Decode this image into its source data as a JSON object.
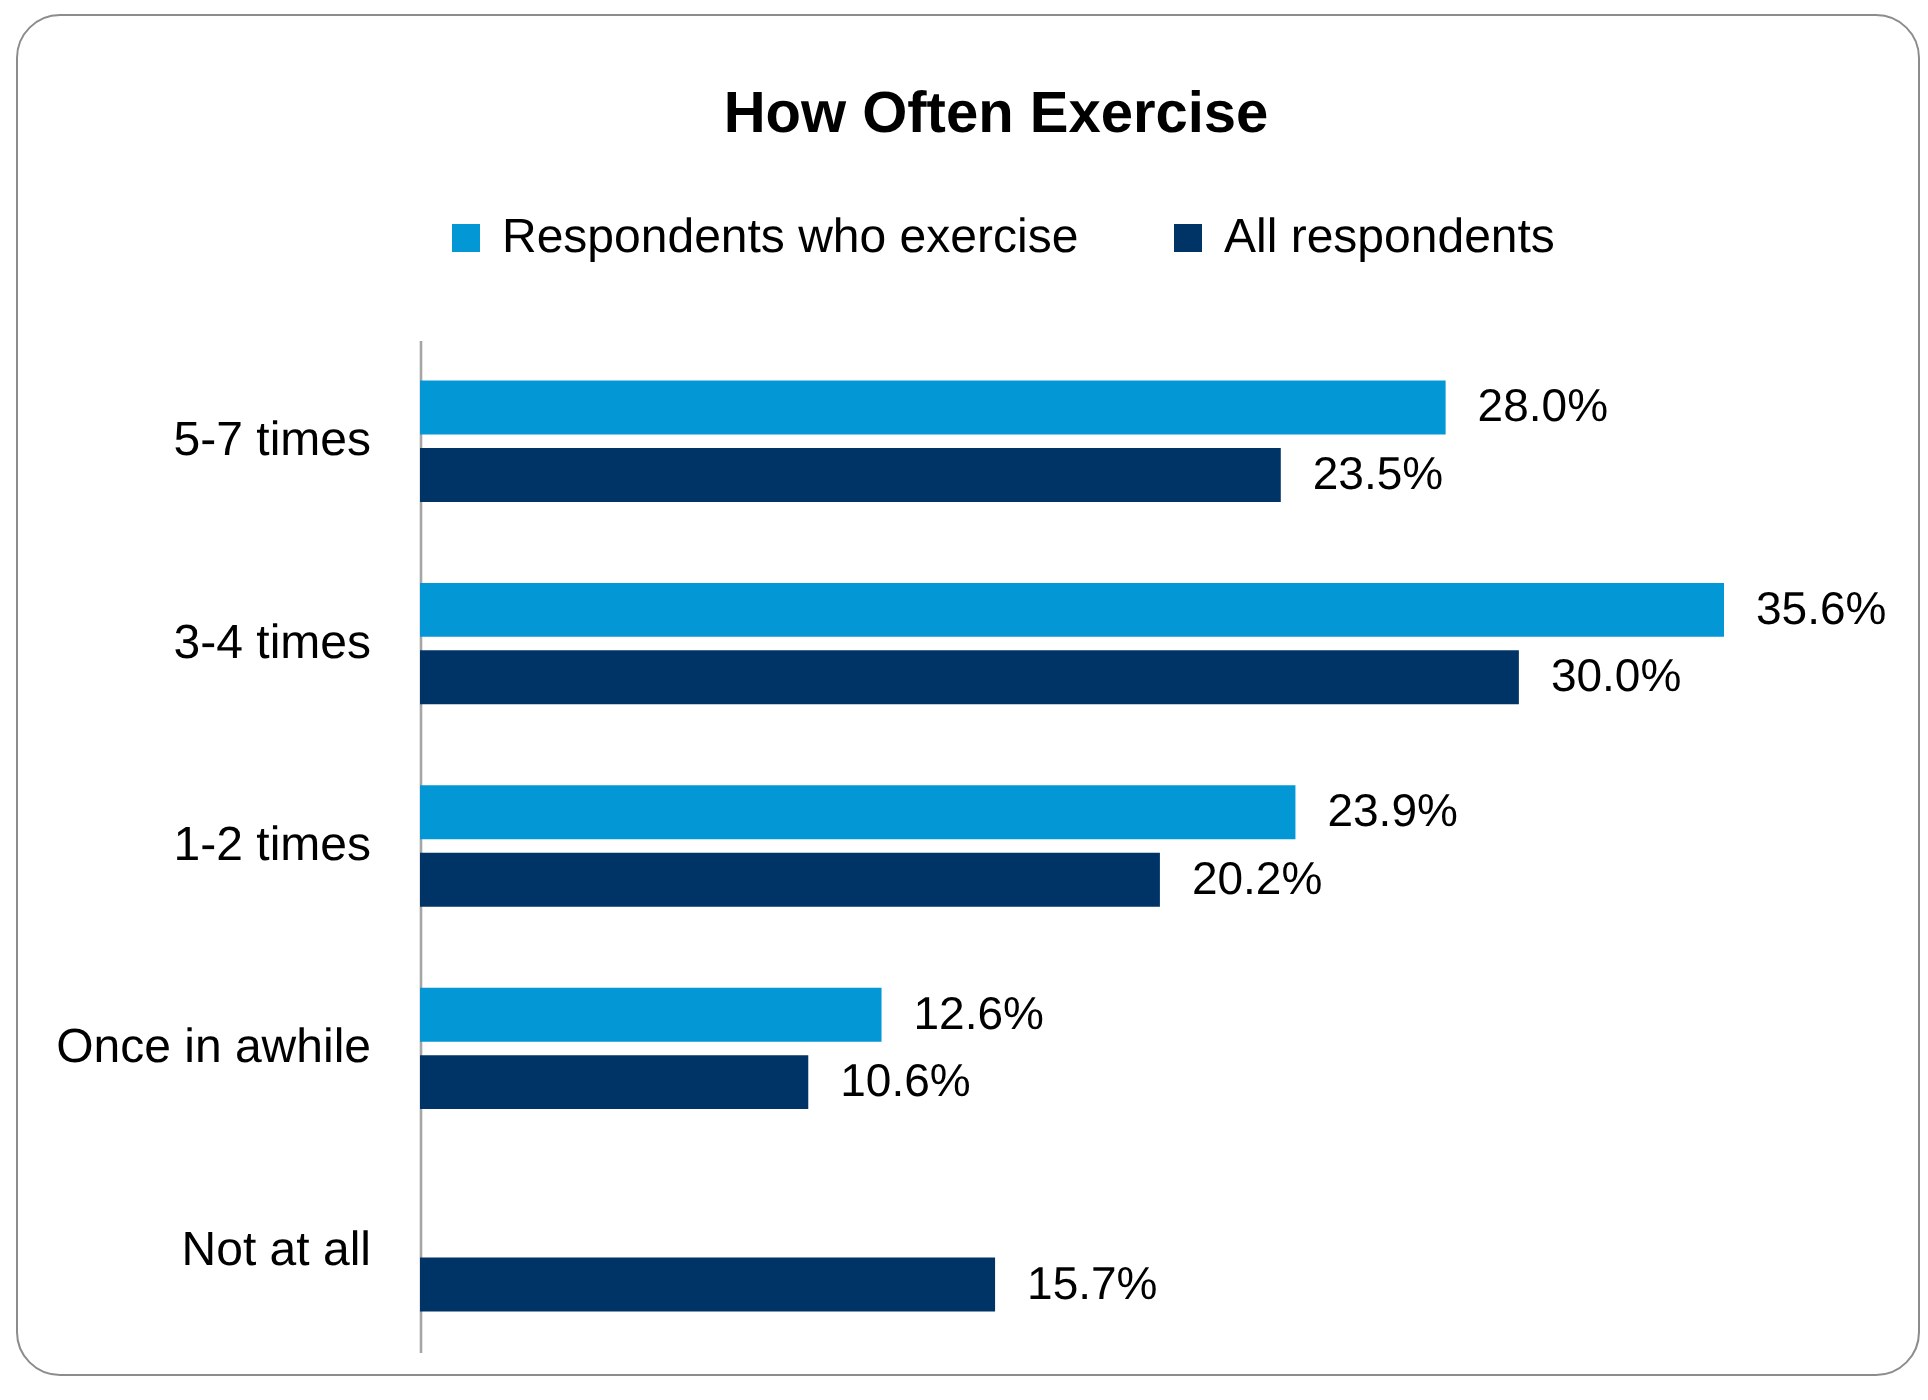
{
  "chart_data": {
    "type": "bar",
    "orientation": "horizontal",
    "title": "How Often Exercise",
    "categories": [
      "5-7 times",
      "3-4 times",
      "1-2 times",
      "Once in awhile",
      "Not at all"
    ],
    "series": [
      {
        "name": "Respondents who exercise",
        "color": "#0397d6",
        "values": [
          28.0,
          35.6,
          23.9,
          12.6,
          null
        ],
        "value_labels": [
          "28.0%",
          "35.6%",
          "23.9%",
          "12.6%",
          null
        ]
      },
      {
        "name": "All respondents",
        "color": "#003366",
        "values": [
          23.5,
          30.0,
          20.2,
          10.6,
          15.7
        ],
        "value_labels": [
          "23.5%",
          "30.0%",
          "20.2%",
          "10.6%",
          "15.7%"
        ]
      }
    ],
    "tick_labels": "y",
    "legend": "top"
  }
}
